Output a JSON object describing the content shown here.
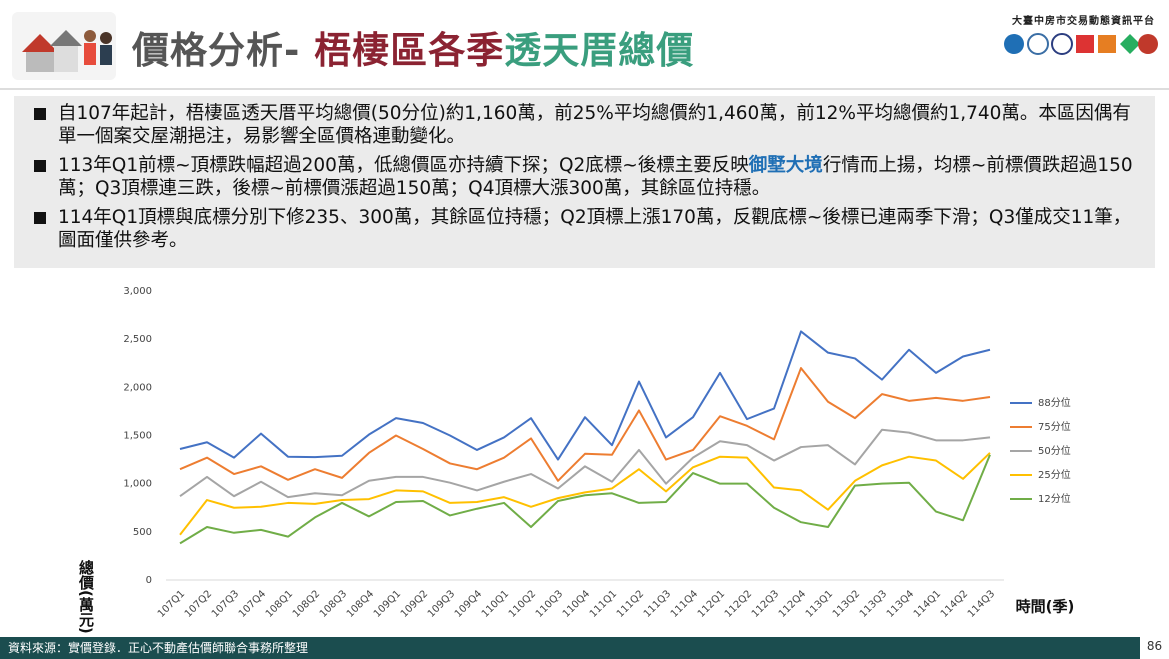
{
  "header": {
    "title_parts": [
      "價格分析- ",
      "梧棲區各季",
      "透天厝總價"
    ],
    "platform": "大臺中房市交易動態資訊平台"
  },
  "bullets": [
    [
      "自107年起計，梧棲區透天厝平均總價(50分位)約1,160萬，前25%平均總價約1,460萬，前12%平均總價約1,740萬。本區因偶有單一個案交屋潮挹注，易影響全區價格連動變化。"
    ],
    [
      "113年Q1前標~頂標跌幅超過200萬，低總價區亦持續下探；Q2底標~後標主要反映",
      "御墅大境",
      "行情而上揚，均標~前標價跌超過150萬；Q3頂標連三跌，後標~前標價漲超過150萬；Q4頂標大漲300萬，其餘區位持穩。"
    ],
    [
      "114年Q1頂標與底標分別下修235、300萬，其餘區位持穩；Q2頂標上漲170萬，反觀底標~後標已連兩季下滑；Q3僅成交11筆，圖面僅供參考。"
    ]
  ],
  "footer": {
    "source": "資料來源：實價登錄．正心不動產估價師聯合事務所整理",
    "page": "86"
  },
  "chart_data": {
    "type": "line",
    "y_label": "總價(萬元)",
    "x_label": "時間(季)",
    "categories": [
      "107Q1",
      "107Q2",
      "107Q3",
      "107Q4",
      "108Q1",
      "108Q2",
      "108Q3",
      "108Q4",
      "109Q1",
      "109Q2",
      "109Q3",
      "109Q4",
      "110Q1",
      "110Q2",
      "110Q3",
      "110Q4",
      "111Q1",
      "111Q2",
      "111Q3",
      "111Q4",
      "112Q1",
      "112Q2",
      "112Q3",
      "112Q4",
      "113Q1",
      "113Q2",
      "113Q3",
      "113Q4",
      "114Q1",
      "114Q2",
      "114Q3"
    ],
    "series": [
      {
        "name": "88分位",
        "color": "#4472c4",
        "values": [
          1360,
          1430,
          1270,
          1520,
          1280,
          1275,
          1290,
          1510,
          1680,
          1630,
          1500,
          1350,
          1480,
          1680,
          1250,
          1690,
          1400,
          2060,
          1480,
          1690,
          2150,
          1670,
          1780,
          2580,
          2360,
          2300,
          2080,
          2390,
          2150,
          2320,
          2390
        ]
      },
      {
        "name": "75分位",
        "color": "#ed7d31",
        "values": [
          1150,
          1270,
          1100,
          1180,
          1040,
          1150,
          1060,
          1320,
          1500,
          1360,
          1210,
          1150,
          1270,
          1470,
          1030,
          1310,
          1300,
          1760,
          1250,
          1350,
          1700,
          1600,
          1460,
          2200,
          1850,
          1680,
          1930,
          1860,
          1890,
          1860,
          1900
        ]
      },
      {
        "name": "50分位",
        "color": "#a5a5a5",
        "values": [
          870,
          1070,
          870,
          1020,
          860,
          900,
          880,
          1030,
          1070,
          1070,
          1010,
          930,
          1020,
          1100,
          950,
          1180,
          1020,
          1350,
          1000,
          1270,
          1440,
          1400,
          1240,
          1380,
          1400,
          1200,
          1560,
          1530,
          1450,
          1450,
          1480
        ]
      },
      {
        "name": "25分位",
        "color": "#ffc000",
        "values": [
          470,
          830,
          750,
          760,
          800,
          790,
          830,
          840,
          930,
          920,
          800,
          810,
          860,
          760,
          850,
          910,
          950,
          1150,
          920,
          1170,
          1280,
          1270,
          960,
          930,
          730,
          1030,
          1190,
          1280,
          1240,
          1050,
          1320
        ]
      },
      {
        "name": "12分位",
        "color": "#70ad47",
        "values": [
          380,
          550,
          490,
          520,
          450,
          650,
          800,
          660,
          810,
          820,
          670,
          740,
          800,
          550,
          820,
          880,
          900,
          800,
          810,
          1110,
          1000,
          1000,
          750,
          600,
          550,
          980,
          1000,
          1010,
          710,
          620,
          1300
        ]
      }
    ],
    "ylim": [
      0,
      3000
    ],
    "yticks": [
      0,
      500,
      {
        "value": 1000,
        "label": "1,000"
      },
      {
        "value": 1500,
        "label": "1,500"
      },
      {
        "value": 2000,
        "label": "2,000"
      },
      {
        "value": 2500,
        "label": "2,500"
      },
      {
        "value": 3000,
        "label": "3,000"
      }
    ],
    "grid": false,
    "legend": "right"
  }
}
